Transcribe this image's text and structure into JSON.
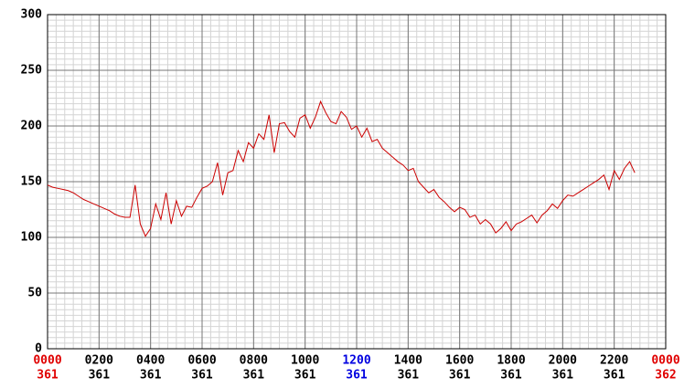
{
  "chart_data": {
    "type": "line",
    "x": [
      0,
      0.2,
      0.4,
      0.6,
      0.8,
      1,
      1.2,
      1.4,
      1.6,
      1.8,
      2,
      2.2,
      2.4,
      2.6,
      2.8,
      3,
      3.2,
      3.4,
      3.6,
      3.8,
      4,
      4.2,
      4.4,
      4.6,
      4.8,
      5,
      5.2,
      5.4,
      5.6,
      5.8,
      6,
      6.2,
      6.4,
      6.6,
      6.8,
      7,
      7.2,
      7.4,
      7.6,
      7.8,
      8,
      8.2,
      8.4,
      8.6,
      8.8,
      9,
      9.2,
      9.4,
      9.6,
      9.8,
      10,
      10.2,
      10.4,
      10.6,
      10.8,
      11,
      11.2,
      11.4,
      11.6,
      11.8,
      12,
      12.2,
      12.4,
      12.6,
      12.8,
      13,
      13.2,
      13.4,
      13.6,
      13.8,
      14,
      14.2,
      14.4,
      14.6,
      14.8,
      15,
      15.2,
      15.4,
      15.6,
      15.8,
      16,
      16.2,
      16.4,
      16.6,
      16.8,
      17,
      17.2,
      17.4,
      17.6,
      17.8,
      18,
      18.2,
      18.4,
      18.6,
      18.8,
      19,
      19.2,
      19.4,
      19.6,
      19.8,
      20,
      20.2,
      20.4,
      20.6,
      20.8,
      21,
      21.2,
      21.4,
      21.6,
      21.8,
      22,
      22.2,
      22.4,
      22.6,
      22.8
    ],
    "values": [
      147,
      145,
      144,
      143,
      142,
      140,
      137,
      134,
      132,
      130,
      128,
      126,
      124,
      121,
      119,
      118,
      118,
      147,
      112,
      101,
      108,
      130,
      116,
      140,
      112,
      133,
      119,
      128,
      127,
      136,
      144,
      146,
      150,
      167,
      138,
      158,
      160,
      178,
      168,
      185,
      180,
      193,
      188,
      210,
      176,
      202,
      203,
      195,
      190,
      207,
      210,
      198,
      208,
      222,
      212,
      204,
      202,
      213,
      208,
      197,
      200,
      190,
      198,
      186,
      188,
      180,
      176,
      172,
      168,
      165,
      160,
      162,
      150,
      145,
      140,
      143,
      136,
      132,
      127,
      123,
      127,
      125,
      118,
      120,
      112,
      116,
      112,
      104,
      108,
      114,
      106,
      112,
      114,
      117,
      120,
      113,
      120,
      124,
      130,
      126,
      133,
      138,
      137,
      140,
      143,
      146,
      149,
      152,
      156,
      143,
      160,
      152,
      162,
      168,
      158
    ],
    "color": "#cc0000",
    "xlim": [
      0,
      24
    ],
    "ylim": [
      0,
      300
    ],
    "yticks": [
      0,
      50,
      100,
      150,
      200,
      250,
      300
    ],
    "xticks": [
      {
        "value": 0,
        "label": "0000"
      },
      {
        "value": 2,
        "label": "0200"
      },
      {
        "value": 4,
        "label": "0400"
      },
      {
        "value": 6,
        "label": "0600"
      },
      {
        "value": 8,
        "label": "0800"
      },
      {
        "value": 10,
        "label": "1000"
      },
      {
        "value": 12,
        "label": "1200"
      },
      {
        "value": 14,
        "label": "1400"
      },
      {
        "value": 16,
        "label": "1600"
      },
      {
        "value": 18,
        "label": "1800"
      },
      {
        "value": 20,
        "label": "2000"
      },
      {
        "value": 22,
        "label": "2200"
      },
      {
        "value": 24,
        "label": "0000"
      }
    ],
    "xtick_days": [
      "361",
      "361",
      "361",
      "361",
      "361",
      "361",
      "361",
      "361",
      "361",
      "361",
      "361",
      "361",
      "362"
    ],
    "xtick_colors": [
      "#e00000",
      "#000000",
      "#000000",
      "#000000",
      "#000000",
      "#000000",
      "#0000e0",
      "#000000",
      "#000000",
      "#000000",
      "#000000",
      "#000000",
      "#e00000"
    ],
    "grid": true,
    "minor_y_step": 5,
    "minor_x_step": 0.333333
  }
}
